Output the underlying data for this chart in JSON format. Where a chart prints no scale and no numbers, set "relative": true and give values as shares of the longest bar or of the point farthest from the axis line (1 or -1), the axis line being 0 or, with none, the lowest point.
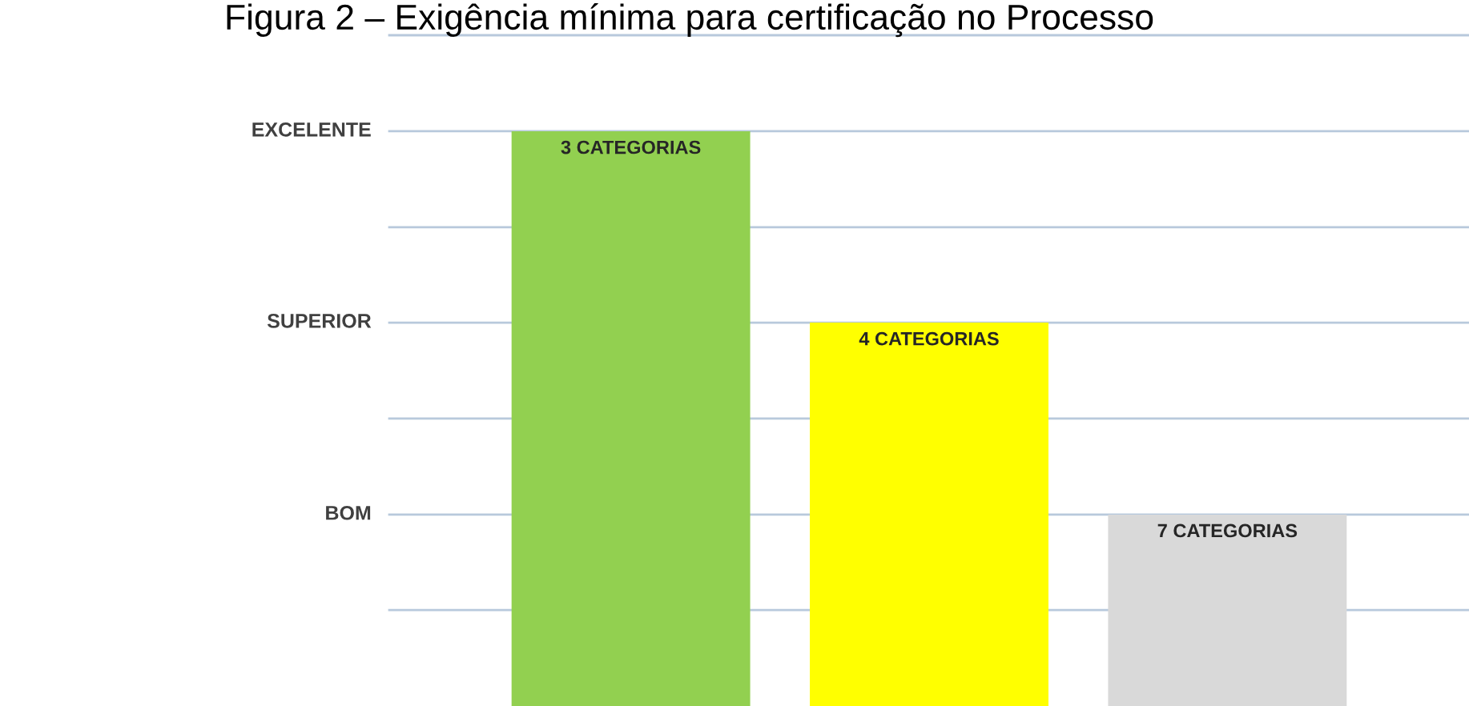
{
  "chart_data": {
    "type": "bar",
    "title": "Figura 2 – Exigência mínima para certificação no Processo",
    "categories": [
      null,
      null,
      null
    ],
    "values": [
      1,
      0.667,
      0.333
    ],
    "colors": [
      "#92d050",
      "#ffff00",
      "#d9d9d9"
    ],
    "relative": true,
    "annotations": [
      "3 CATEGORIAS",
      "4 CATEGORIAS",
      "7 CATEGORIAS"
    ],
    "ref_lines": [
      {
        "axis": "y",
        "value": 0.167,
        "label": null,
        "color": "#b8c9dc"
      },
      {
        "axis": "y",
        "value": 0.333,
        "label": "BOM",
        "color": "#b8c9dc"
      },
      {
        "axis": "y",
        "value": 0.5,
        "label": null,
        "color": "#b8c9dc"
      },
      {
        "axis": "y",
        "value": 0.667,
        "label": "SUPERIOR",
        "color": "#b8c9dc"
      },
      {
        "axis": "y",
        "value": 0.833,
        "label": null,
        "color": "#b8c9dc"
      },
      {
        "axis": "y",
        "value": 1,
        "label": "EXCELENTE",
        "color": "#b8c9dc"
      },
      {
        "axis": "y",
        "value": 1.167,
        "label": null,
        "color": "#b8c9dc"
      }
    ]
  }
}
